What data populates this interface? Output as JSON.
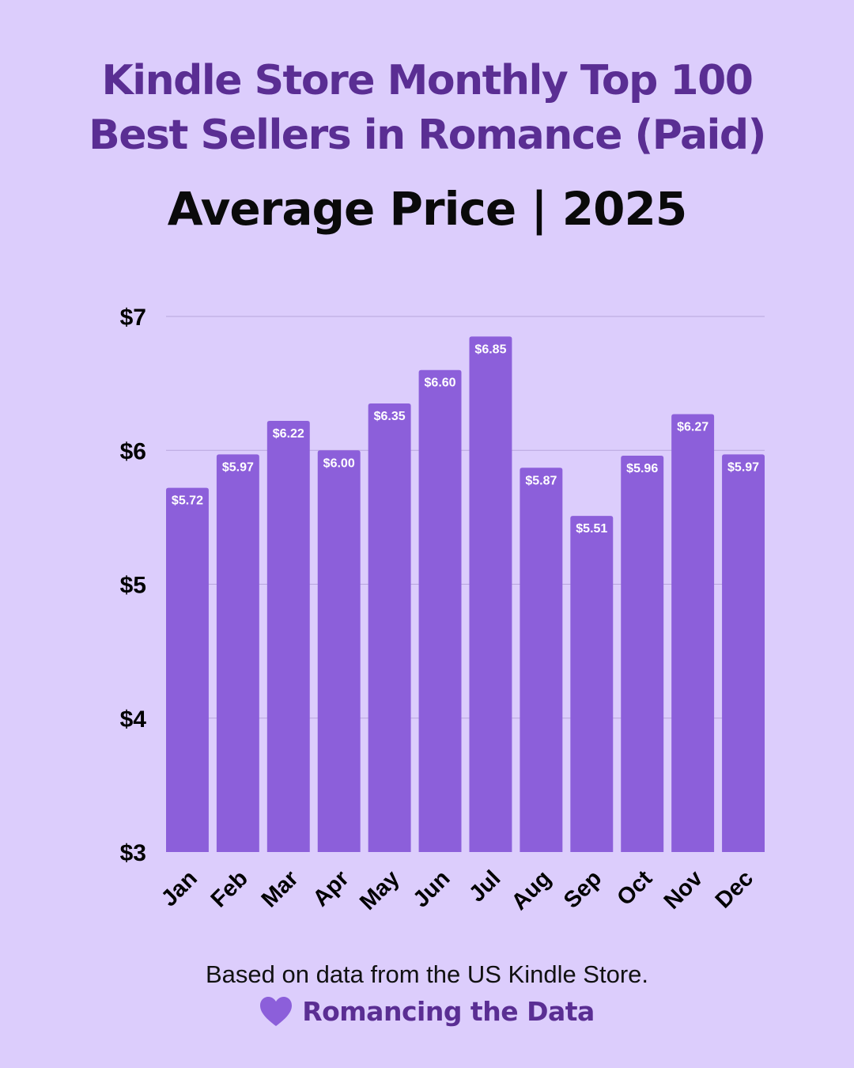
{
  "header": {
    "title_line1": "Kindle Store Monthly Top 100",
    "title_line2": "Best Sellers in Romance (Paid)",
    "subtitle": "Average Price | 2025"
  },
  "footer": {
    "note": "Based on data from the US Kindle Store.",
    "brand": "Romancing the Data",
    "brand_icon": "heart-icon",
    "brand_color": "#5a2e93"
  },
  "chart_data": {
    "type": "bar",
    "title": "Kindle Store Monthly Top 100 Best Sellers in Romance (Paid)",
    "subtitle": "Average Price | 2025",
    "categories": [
      "Jan",
      "Feb",
      "Mar",
      "Apr",
      "May",
      "Jun",
      "Jul",
      "Aug",
      "Sep",
      "Oct",
      "Nov",
      "Dec"
    ],
    "values": [
      5.72,
      5.97,
      6.22,
      6.0,
      6.35,
      6.6,
      6.85,
      5.87,
      5.51,
      5.96,
      6.27,
      5.97
    ],
    "data_labels": [
      "$5.72",
      "$5.97",
      "$6.22",
      "$6.00",
      "$6.35",
      "$6.60",
      "$6.85",
      "$5.87",
      "$5.51",
      "$5.96",
      "$6.27",
      "$5.97"
    ],
    "ylim": [
      3,
      7
    ],
    "yticks": [
      3,
      4,
      5,
      6,
      7
    ],
    "ytick_labels": [
      "$3",
      "$4",
      "$5",
      "$6",
      "$7"
    ],
    "xlabel": "",
    "ylabel": "",
    "grid": true,
    "bar_color": "#8c5fda",
    "background_color": "#dccdfc"
  }
}
